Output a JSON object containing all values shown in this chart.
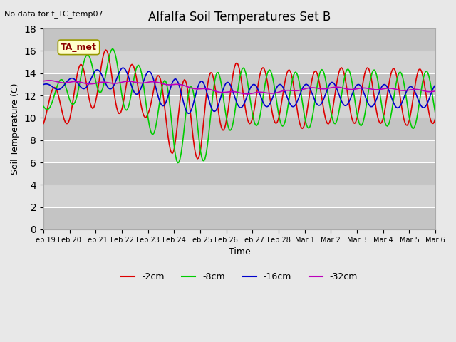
{
  "title": "Alfalfa Soil Temperatures Set B",
  "xlabel": "Time",
  "ylabel": "Soil Temperature (C)",
  "top_left_note": "No data for f_TC_temp07",
  "legend_box_label": "TA_met",
  "ylim": [
    0,
    18
  ],
  "yticks": [
    0,
    2,
    4,
    6,
    8,
    10,
    12,
    14,
    16,
    18
  ],
  "background_color": "#e8e8e8",
  "plot_bg_color": "#d3d3d3",
  "colors": {
    "-2cm": "#dd0000",
    "-8cm": "#00cc00",
    "-16cm": "#0000cc",
    "-32cm": "#bb00bb"
  },
  "series_labels": [
    "-2cm",
    "-8cm",
    "-16cm",
    "-32cm"
  ],
  "x_tick_labels": [
    "Feb 19",
    "Feb 20",
    "Feb 21",
    "Feb 22",
    "Feb 23",
    "Feb 24",
    "Feb 25",
    "Feb 26",
    "Feb 27",
    "Feb 28",
    "Mar 1",
    "Mar 2",
    "Mar 3",
    "Mar 4",
    "Mar 5",
    "Mar 6"
  ],
  "n_days": 15
}
